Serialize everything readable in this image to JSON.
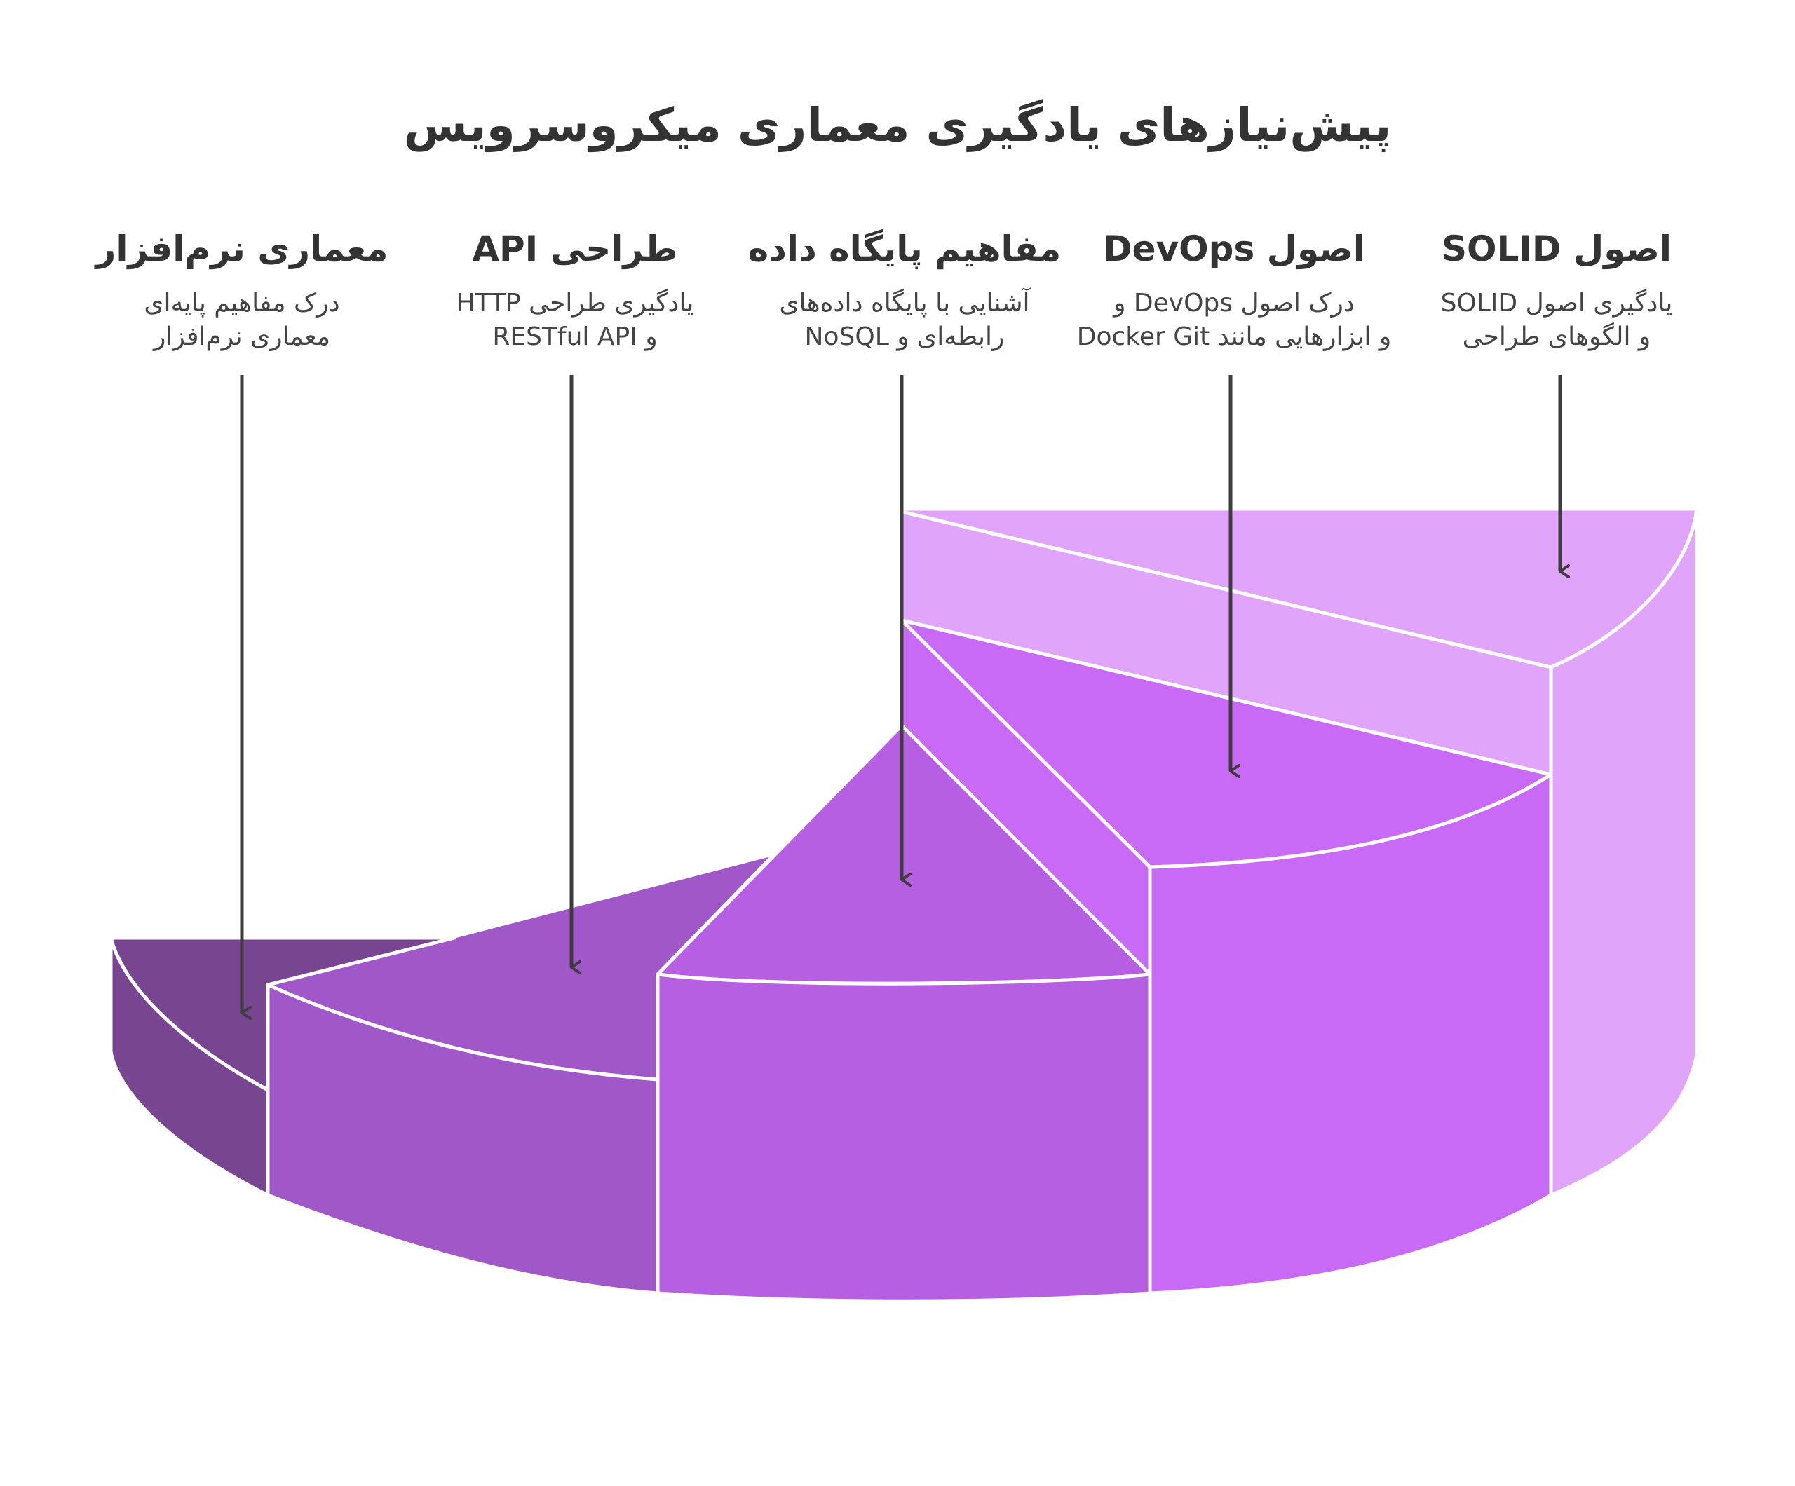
{
  "title": "پیش‌نیازهای یادگیری معماری میکروسرویس",
  "colors": {
    "solid": "#e0a4fa",
    "devops": "#c96af6",
    "database": "#b65fe2",
    "api": "#a057c8",
    "architecture": "#784690",
    "arrow": "#3d3d3d",
    "stroke": "#ffffff"
  },
  "items": [
    {
      "id": "solid",
      "title": "اصول SOLID",
      "line1": "یادگیری اصول SOLID",
      "line2": "و الگوهای طراحی"
    },
    {
      "id": "devops",
      "title": "اصول DevOps",
      "line1": "درک اصول DevOps و",
      "line2": "و ابزارهایی مانند Docker Git"
    },
    {
      "id": "database",
      "title": "مفاهیم پایگاه داده",
      "line1": "آشنایی با پایگاه داده‌های",
      "line2": "رابطه‌ای و NoSQL"
    },
    {
      "id": "api",
      "title": "طراحی API",
      "line1": "یادگیری طراحی HTTP",
      "line2": "و RESTful API"
    },
    {
      "id": "architecture",
      "title": "معماری نرم‌افزار",
      "line1": "درک مفاهیم پایه‌ای",
      "line2": "معماری نرم‌افزار"
    }
  ]
}
